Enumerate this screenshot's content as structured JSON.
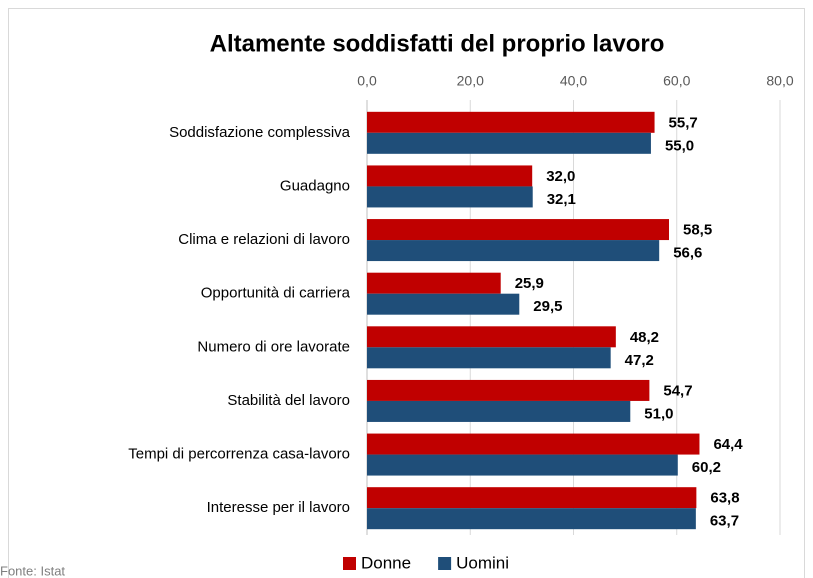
{
  "chart_data": {
    "type": "barh",
    "title": "Altamente soddisfatti del proprio lavoro",
    "categories": [
      "Soddisfazione complessiva",
      "Guadagno",
      "Clima e relazioni di lavoro",
      "Opportunità di carriera",
      "Numero di ore lavorate",
      "Stabilità del lavoro",
      "Tempi di percorrenza casa-lavoro",
      "Interesse per il lavoro"
    ],
    "series": [
      {
        "name": "Donne",
        "color": "#c00000",
        "values": [
          55.7,
          32.0,
          58.5,
          25.9,
          48.2,
          54.7,
          64.4,
          63.8
        ],
        "value_labels": [
          "55,7",
          "32,0",
          "58,5",
          "25,9",
          "48,2",
          "54,7",
          "64,4",
          "63,8"
        ]
      },
      {
        "name": "Uomini",
        "color": "#1f4e79",
        "values": [
          55.0,
          32.1,
          56.6,
          29.5,
          47.2,
          51.0,
          60.2,
          63.7
        ],
        "value_labels": [
          "55,0",
          "32,1",
          "56,6",
          "29,5",
          "47,2",
          "51,0",
          "60,2",
          "63,7"
        ]
      }
    ],
    "xlim": [
      0,
      80
    ],
    "xticks": [
      {
        "value": 0,
        "label": "0,0"
      },
      {
        "value": 20,
        "label": "20,0"
      },
      {
        "value": 40,
        "label": "40,0"
      },
      {
        "value": 60,
        "label": "60,0"
      },
      {
        "value": 80,
        "label": "80,0"
      }
    ],
    "grid": true,
    "legend": "bottom",
    "source": "Fonte: Istat"
  }
}
